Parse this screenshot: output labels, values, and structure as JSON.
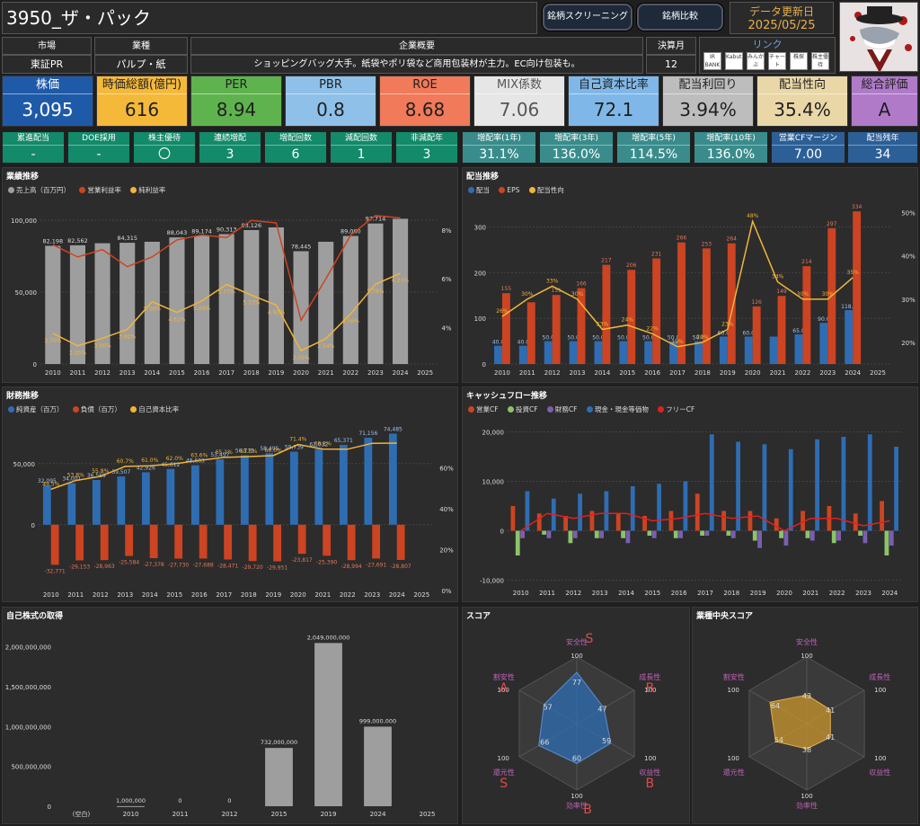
{
  "header": {
    "title": "3950_ザ・パック",
    "btn_screening": "銘柄スクリーニング",
    "btn_compare": "銘柄比較",
    "update_label": "データ更新日",
    "update_date": "2025/05/25"
  },
  "info": {
    "market_h": "市場",
    "market": "東証PR",
    "industry_h": "業種",
    "industry": "パルプ・紙",
    "overview_h": "企業概要",
    "overview": "ショッピングバッグ大手。紙袋やポリ袋など商用包装材が主力。EC向け包装も。",
    "fiscal_h": "決算月",
    "fiscal": "12",
    "link_h": "リンク",
    "links": [
      "IR BANK",
      "Kabutan",
      "みんかぶ",
      "チャート",
      "株探",
      "株主優待"
    ]
  },
  "kpis": [
    {
      "label": "株価",
      "value": "3,095",
      "bg": "#1f5aa8",
      "fg": "#ffffff"
    },
    {
      "label": "時価総額(億円)",
      "value": "616",
      "bg": "#f5b93a",
      "fg": "#1f1f1f"
    },
    {
      "label": "PER",
      "value": "8.94",
      "bg": "#5fb34e",
      "fg": "#1f1f1f"
    },
    {
      "label": "PBR",
      "value": "0.8",
      "bg": "#8fc0e8",
      "fg": "#1f1f1f"
    },
    {
      "label": "ROE",
      "value": "8.68",
      "bg": "#f07a5a",
      "fg": "#1f1f1f"
    },
    {
      "label": "MIX係数",
      "value": "7.06",
      "bg": "#e6e6e6",
      "fg": "#555555"
    },
    {
      "label": "自己資本比率",
      "value": "72.1",
      "bg": "#7fb8e8",
      "fg": "#1f1f1f"
    },
    {
      "label": "配当利回り",
      "value": "3.94%",
      "bg": "#bdbdbd",
      "fg": "#1f1f1f"
    },
    {
      "label": "配当性向",
      "value": "35.4%",
      "bg": "#ead7a8",
      "fg": "#1f1f1f"
    },
    {
      "label": "総合評価",
      "value": "A",
      "bg": "#b07ac9",
      "fg": "#1f1f1f"
    }
  ],
  "stats": [
    {
      "label": "累進配当",
      "value": "-",
      "bg": "#138a6a"
    },
    {
      "label": "DOE採用",
      "value": "-",
      "bg": "#138a6a"
    },
    {
      "label": "株主優待",
      "value": "〇",
      "bg": "#138a6a"
    },
    {
      "label": "連続増配",
      "value": "3",
      "bg": "#138a6a"
    },
    {
      "label": "増配回数",
      "value": "6",
      "bg": "#138a6a"
    },
    {
      "label": "減配回数",
      "value": "1",
      "bg": "#138a6a"
    },
    {
      "label": "非減配年",
      "value": "3",
      "bg": "#138a6a"
    },
    {
      "label": "増配率(1年)",
      "value": "31.1%",
      "bg": "#3a8c8c"
    },
    {
      "label": "増配率(3年)",
      "value": "136.0%",
      "bg": "#3a8c8c"
    },
    {
      "label": "増配率(5年)",
      "value": "114.5%",
      "bg": "#3a8c8c"
    },
    {
      "label": "増配率(10年)",
      "value": "136.0%",
      "bg": "#3a8c8c"
    },
    {
      "label": "営業CFマージン",
      "value": "7.00",
      "bg": "#2c5f96"
    },
    {
      "label": "配当残年",
      "value": "34",
      "bg": "#2c5f96"
    }
  ],
  "chart_data": [
    {
      "id": "performance",
      "type": "bar",
      "title": "業績推移",
      "legend": [
        "売上高（百万円）",
        "営業利益率",
        "純利益率"
      ],
      "categories": [
        "2010",
        "2011",
        "2012",
        "2013",
        "2014",
        "2015",
        "2016",
        "2017",
        "2018",
        "2019",
        "2020",
        "2021",
        "2022",
        "2023",
        "2024",
        "2025"
      ],
      "series": [
        {
          "name": "売上高（百万円）",
          "values": [
            82198,
            82562,
            84000,
            84315,
            85000,
            88043,
            89174,
            90313,
            93126,
            95000,
            78445,
            85000,
            89060,
            97714,
            101000,
            null
          ]
        },
        {
          "name": "営業利益率",
          "values": [
            7.4,
            6.9,
            7.2,
            6.5,
            6.9,
            7.6,
            7.8,
            7.7,
            8.4,
            8.3,
            4.3,
            6.0,
            7.8,
            8.6,
            8.5,
            null
          ]
        },
        {
          "name": "純利益率",
          "values": [
            3.76,
            3.25,
            3.56,
            3.92,
            5.06,
            4.62,
            5.09,
            5.77,
            5.33,
            4.92,
            3.05,
            3.54,
            4.56,
            5.78,
            6.23,
            null
          ]
        }
      ],
      "value_labels": [
        "82,198",
        "82,562",
        "",
        "84,315",
        "",
        "88,043",
        "89,174",
        "90,313",
        "93,126",
        "",
        "78,445",
        "",
        "89,060",
        "97,714",
        "",
        ""
      ],
      "net_labels": [
        "3.76%",
        "3.25%",
        "3.56%",
        "3.92%",
        "5.06%",
        "4.62%",
        "5.09%",
        "5.77%",
        "5.33%",
        "4.92%",
        "3.05%",
        "3.54%",
        "4.56%",
        "5.78%",
        "6.23%",
        ""
      ],
      "yticks": [
        "0",
        "50,000",
        "100,000"
      ],
      "y2ticks": [
        "4%",
        "6%",
        "8%"
      ],
      "ylim": [
        0,
        110000
      ],
      "y2lim": [
        2.5,
        9
      ]
    },
    {
      "id": "dividend",
      "type": "bar",
      "title": "配当推移",
      "legend": [
        "配当",
        "EPS",
        "配当性向"
      ],
      "categories": [
        "2010",
        "2011",
        "2012",
        "2013",
        "2014",
        "2015",
        "2016",
        "2017",
        "2018",
        "2019",
        "2020",
        "2021",
        "2022",
        "2023",
        "2024",
        "2025"
      ],
      "series": [
        {
          "name": "配当",
          "values": [
            40.0,
            40.0,
            50.0,
            50.0,
            50.0,
            50.0,
            50.0,
            50.0,
            50.0,
            60.0,
            60.0,
            60.0,
            65.0,
            90.0,
            118.0,
            null
          ]
        },
        {
          "name": "EPS",
          "values": [
            155,
            135,
            151,
            166,
            217,
            206,
            231,
            266,
            253,
            264,
            126,
            149,
            214,
            297,
            334,
            null
          ]
        },
        {
          "name": "配当性向",
          "values": [
            26,
            30,
            33,
            30,
            23,
            24,
            22,
            19,
            20,
            23,
            48,
            34,
            30,
            30,
            35,
            null
          ]
        }
      ],
      "div_labels": [
        "40.0",
        "40.0",
        "50.0",
        "50.0",
        "50.0",
        "50.0",
        "50.0",
        "50.0",
        "50.0",
        "60.0",
        "60.0",
        "",
        "65.0",
        "90.0",
        "118.0",
        ""
      ],
      "eps_labels": [
        "155",
        "",
        "151",
        "166",
        "217",
        "206",
        "231",
        "266",
        "253",
        "264",
        "126",
        "149",
        "214",
        "297",
        "334",
        ""
      ],
      "pay_labels": [
        "26%",
        "30%",
        "33%",
        "30%",
        "23%",
        "24%",
        "22%",
        "19%",
        "20%",
        "23%",
        "48%",
        "34%",
        "30%",
        "30%",
        "35%",
        ""
      ],
      "yticks": [
        "0",
        "100",
        "200",
        "300"
      ],
      "y2ticks": [
        "20%",
        "30%",
        "40%",
        "50%"
      ],
      "ylim": [
        0,
        350
      ],
      "y2lim": [
        15,
        52
      ]
    },
    {
      "id": "finance",
      "type": "bar",
      "title": "財務推移",
      "legend": [
        "純資産（百万）",
        "負債（百万）",
        "自己資本比率"
      ],
      "categories": [
        "2010",
        "2011",
        "2012",
        "2013",
        "2014",
        "2015",
        "2016",
        "2017",
        "2018",
        "2019",
        "2020",
        "2021",
        "2022",
        "2023",
        "2024",
        "2025"
      ],
      "series": [
        {
          "name": "純資産（百万）",
          "values": [
            32095,
            34001,
            36569,
            39507,
            42926,
            45612,
            48603,
            53457,
            56775,
            58495,
            59739,
            62032,
            65371,
            71156,
            74485,
            null
          ]
        },
        {
          "name": "負債（百万）",
          "values": [
            -32771,
            -29153,
            -28963,
            -25584,
            -27378,
            -27730,
            -27688,
            -28471,
            -29720,
            -29951,
            -23817,
            -25390,
            -28994,
            -27691,
            -28807,
            null
          ]
        },
        {
          "name": "自己資本比率",
          "values": [
            49.5,
            53.8,
            55.8,
            60.7,
            61.0,
            62.0,
            63.6,
            65.1,
            65.5,
            66.0,
            71.4,
            69.2,
            69.1,
            72.0,
            72.1,
            null
          ]
        }
      ],
      "asset_labels": [
        "32,095",
        "34,001",
        "36,569",
        "39,507",
        "42,926",
        "45,612",
        "48,603",
        "53,457",
        "56,775",
        "58,495",
        "59,739",
        "62,032",
        "65,371",
        "71,156",
        "74,485",
        ""
      ],
      "debt_labels": [
        "-32,771",
        "-29,153",
        "-28,963",
        "-25,584",
        "-27,378",
        "-27,730",
        "-27,688",
        "-28,471",
        "-29,720",
        "-29,951",
        "-23,817",
        "-25,390",
        "-28,994",
        "-27,691",
        "-28,807",
        ""
      ],
      "ratio_labels": [
        "49.5%",
        "53.8%",
        "55.8%",
        "60.7%",
        "61.0%",
        "62.0%",
        "63.6%",
        "65.1%",
        "65.5%",
        "66.0%",
        "71.4%",
        "69.2%",
        "",
        "",
        "",
        ""
      ],
      "yticks": [
        "0",
        "50,000"
      ],
      "y2ticks": [
        "0%",
        "20%",
        "40%",
        "60%"
      ],
      "ylim": [
        -45000,
        80000
      ],
      "y2lim": [
        0,
        80
      ]
    },
    {
      "id": "cashflow",
      "type": "bar",
      "title": "キャッシュフロー推移",
      "legend": [
        "営業CF",
        "投資CF",
        "財務CF",
        "現金・現金等価物",
        "フリーCF"
      ],
      "categories": [
        "2010",
        "2011",
        "2012",
        "2013",
        "2014",
        "2015",
        "2016",
        "2017",
        "2018",
        "2019",
        "2020",
        "2021",
        "2022",
        "2023",
        "2024"
      ],
      "series": [
        {
          "name": "営業CF",
          "values": [
            5000,
            3500,
            3000,
            4000,
            3500,
            3000,
            4000,
            7500,
            4000,
            4000,
            2500,
            4000,
            5000,
            3500,
            6000
          ]
        },
        {
          "name": "投資CF",
          "values": [
            -5000,
            -800,
            -2500,
            -1500,
            -1500,
            -1000,
            -1500,
            -1000,
            -1000,
            -2000,
            -1500,
            -1500,
            -2500,
            -1000,
            -5000
          ]
        },
        {
          "name": "財務CF",
          "values": [
            -1500,
            -1500,
            -1500,
            -1500,
            -2500,
            -1500,
            -1500,
            -1000,
            -1500,
            -3500,
            -3000,
            -2000,
            -2000,
            -2500,
            -3000
          ]
        },
        {
          "name": "現金・現金等価物",
          "values": [
            8000,
            6500,
            7500,
            8000,
            9000,
            9500,
            10000,
            19500,
            18000,
            17500,
            16500,
            18500,
            19000,
            19500,
            17000
          ]
        },
        {
          "name": "フリーCF",
          "values": [
            0,
            3500,
            2500,
            3500,
            3500,
            2000,
            2500,
            3500,
            2500,
            3000,
            0,
            2500,
            2500,
            1000,
            2000
          ]
        }
      ],
      "yticks": [
        "-10,000",
        "0",
        "10,000",
        "20,000"
      ],
      "ylim": [
        -11000,
        21000
      ]
    },
    {
      "id": "buyback",
      "type": "bar",
      "title": "自己株式の取得",
      "categories": [
        "(空白)",
        "2010",
        "2011",
        "2012",
        "2015",
        "2019",
        "2024",
        "2025"
      ],
      "values": [
        0,
        1000000,
        0,
        0,
        732000000,
        2049000000,
        999000000,
        null
      ],
      "value_labels": [
        "",
        "1,000,000",
        "0",
        "0",
        "732,000,000",
        "2,049,000,000",
        "999,000,000",
        ""
      ],
      "yticks": [
        "0",
        "500,000,000",
        "1,000,000,000",
        "1,500,000,000",
        "2,000,000,000"
      ],
      "ylim": [
        0,
        2200000000
      ]
    },
    {
      "id": "score",
      "type": "radar",
      "title": "スコア",
      "axes": [
        "安全性",
        "成長性",
        "収益性",
        "効率性",
        "還元性",
        "割安性"
      ],
      "values": [
        77,
        47,
        59,
        60,
        66,
        57
      ],
      "max": 100,
      "grades": [
        "S",
        "B",
        "B",
        "B",
        "S",
        "A"
      ]
    },
    {
      "id": "industry_score",
      "type": "radar",
      "title": "業種中央スコア",
      "axes": [
        "安全性",
        "成長性",
        "収益性",
        "効率性",
        "還元性",
        "割安性"
      ],
      "values": [
        43,
        41,
        41,
        38,
        54,
        64
      ],
      "max": 100
    }
  ],
  "colors": {
    "gray_bar": "#9e9e9e",
    "red": "#cc4422",
    "orange_line": "#f0b43c",
    "blue": "#2f6db3",
    "green": "#8cc36a",
    "purple": "#7a5fb0",
    "red_line": "#e02020",
    "radar_blue": "#2f6db3",
    "radar_gold": "#c9962e",
    "grade_red": "#e04a4a",
    "axis_label": "#c060b8"
  }
}
